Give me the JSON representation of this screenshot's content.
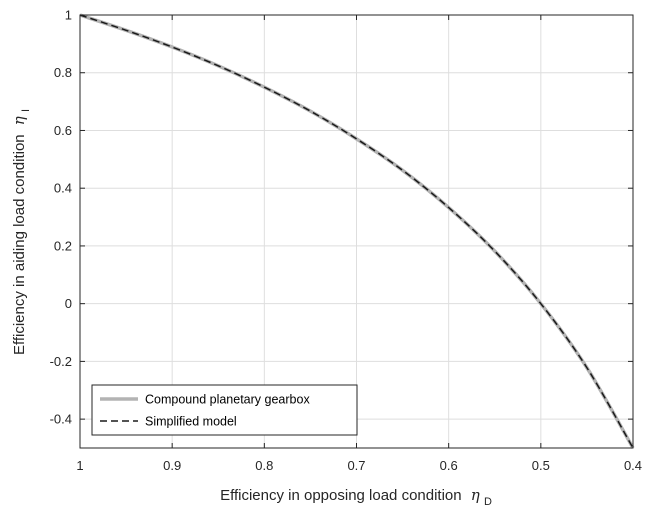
{
  "chart_data": {
    "type": "line",
    "xlabel": "Efficiency in opposing load condition",
    "xlabel_symbol": "η",
    "xlabel_subscript": "D",
    "ylabel": "Efficiency in aiding load condition",
    "ylabel_symbol": "η",
    "ylabel_subscript": "I",
    "xlim": [
      1,
      0.4
    ],
    "x_reversed": true,
    "ylim": [
      -0.5,
      1
    ],
    "xticks": [
      1,
      0.9,
      0.8,
      0.7,
      0.6,
      0.5,
      0.4
    ],
    "xtick_labels": [
      "1",
      "0.9",
      "0.8",
      "0.7",
      "0.6",
      "0.5",
      "0.4"
    ],
    "yticks": [
      -0.4,
      -0.2,
      0,
      0.2,
      0.4,
      0.6,
      0.8,
      1
    ],
    "ytick_labels": [
      "-0.4",
      "-0.2",
      "0",
      "0.2",
      "0.4",
      "0.6",
      "0.8",
      "1"
    ],
    "grid": true,
    "legend_position": "bottom-left",
    "series": [
      {
        "name": "Compound planetary gearbox",
        "style": "solid",
        "color": "#b3b3b3",
        "x": [
          1.0,
          0.95,
          0.9,
          0.85,
          0.8,
          0.75,
          0.7,
          0.65,
          0.6,
          0.55,
          0.5,
          0.45,
          0.4
        ],
        "y": [
          1.0,
          0.947,
          0.889,
          0.824,
          0.75,
          0.667,
          0.571,
          0.462,
          0.333,
          0.182,
          0.0,
          -0.222,
          -0.5
        ]
      },
      {
        "name": "Simplified model",
        "style": "dashed",
        "color": "#1a1a1a",
        "x": [
          1.0,
          0.95,
          0.9,
          0.85,
          0.8,
          0.75,
          0.7,
          0.65,
          0.6,
          0.55,
          0.5,
          0.45,
          0.4
        ],
        "y": [
          1.0,
          0.947,
          0.889,
          0.824,
          0.75,
          0.667,
          0.571,
          0.462,
          0.333,
          0.182,
          0.0,
          -0.222,
          -0.5
        ]
      }
    ]
  }
}
